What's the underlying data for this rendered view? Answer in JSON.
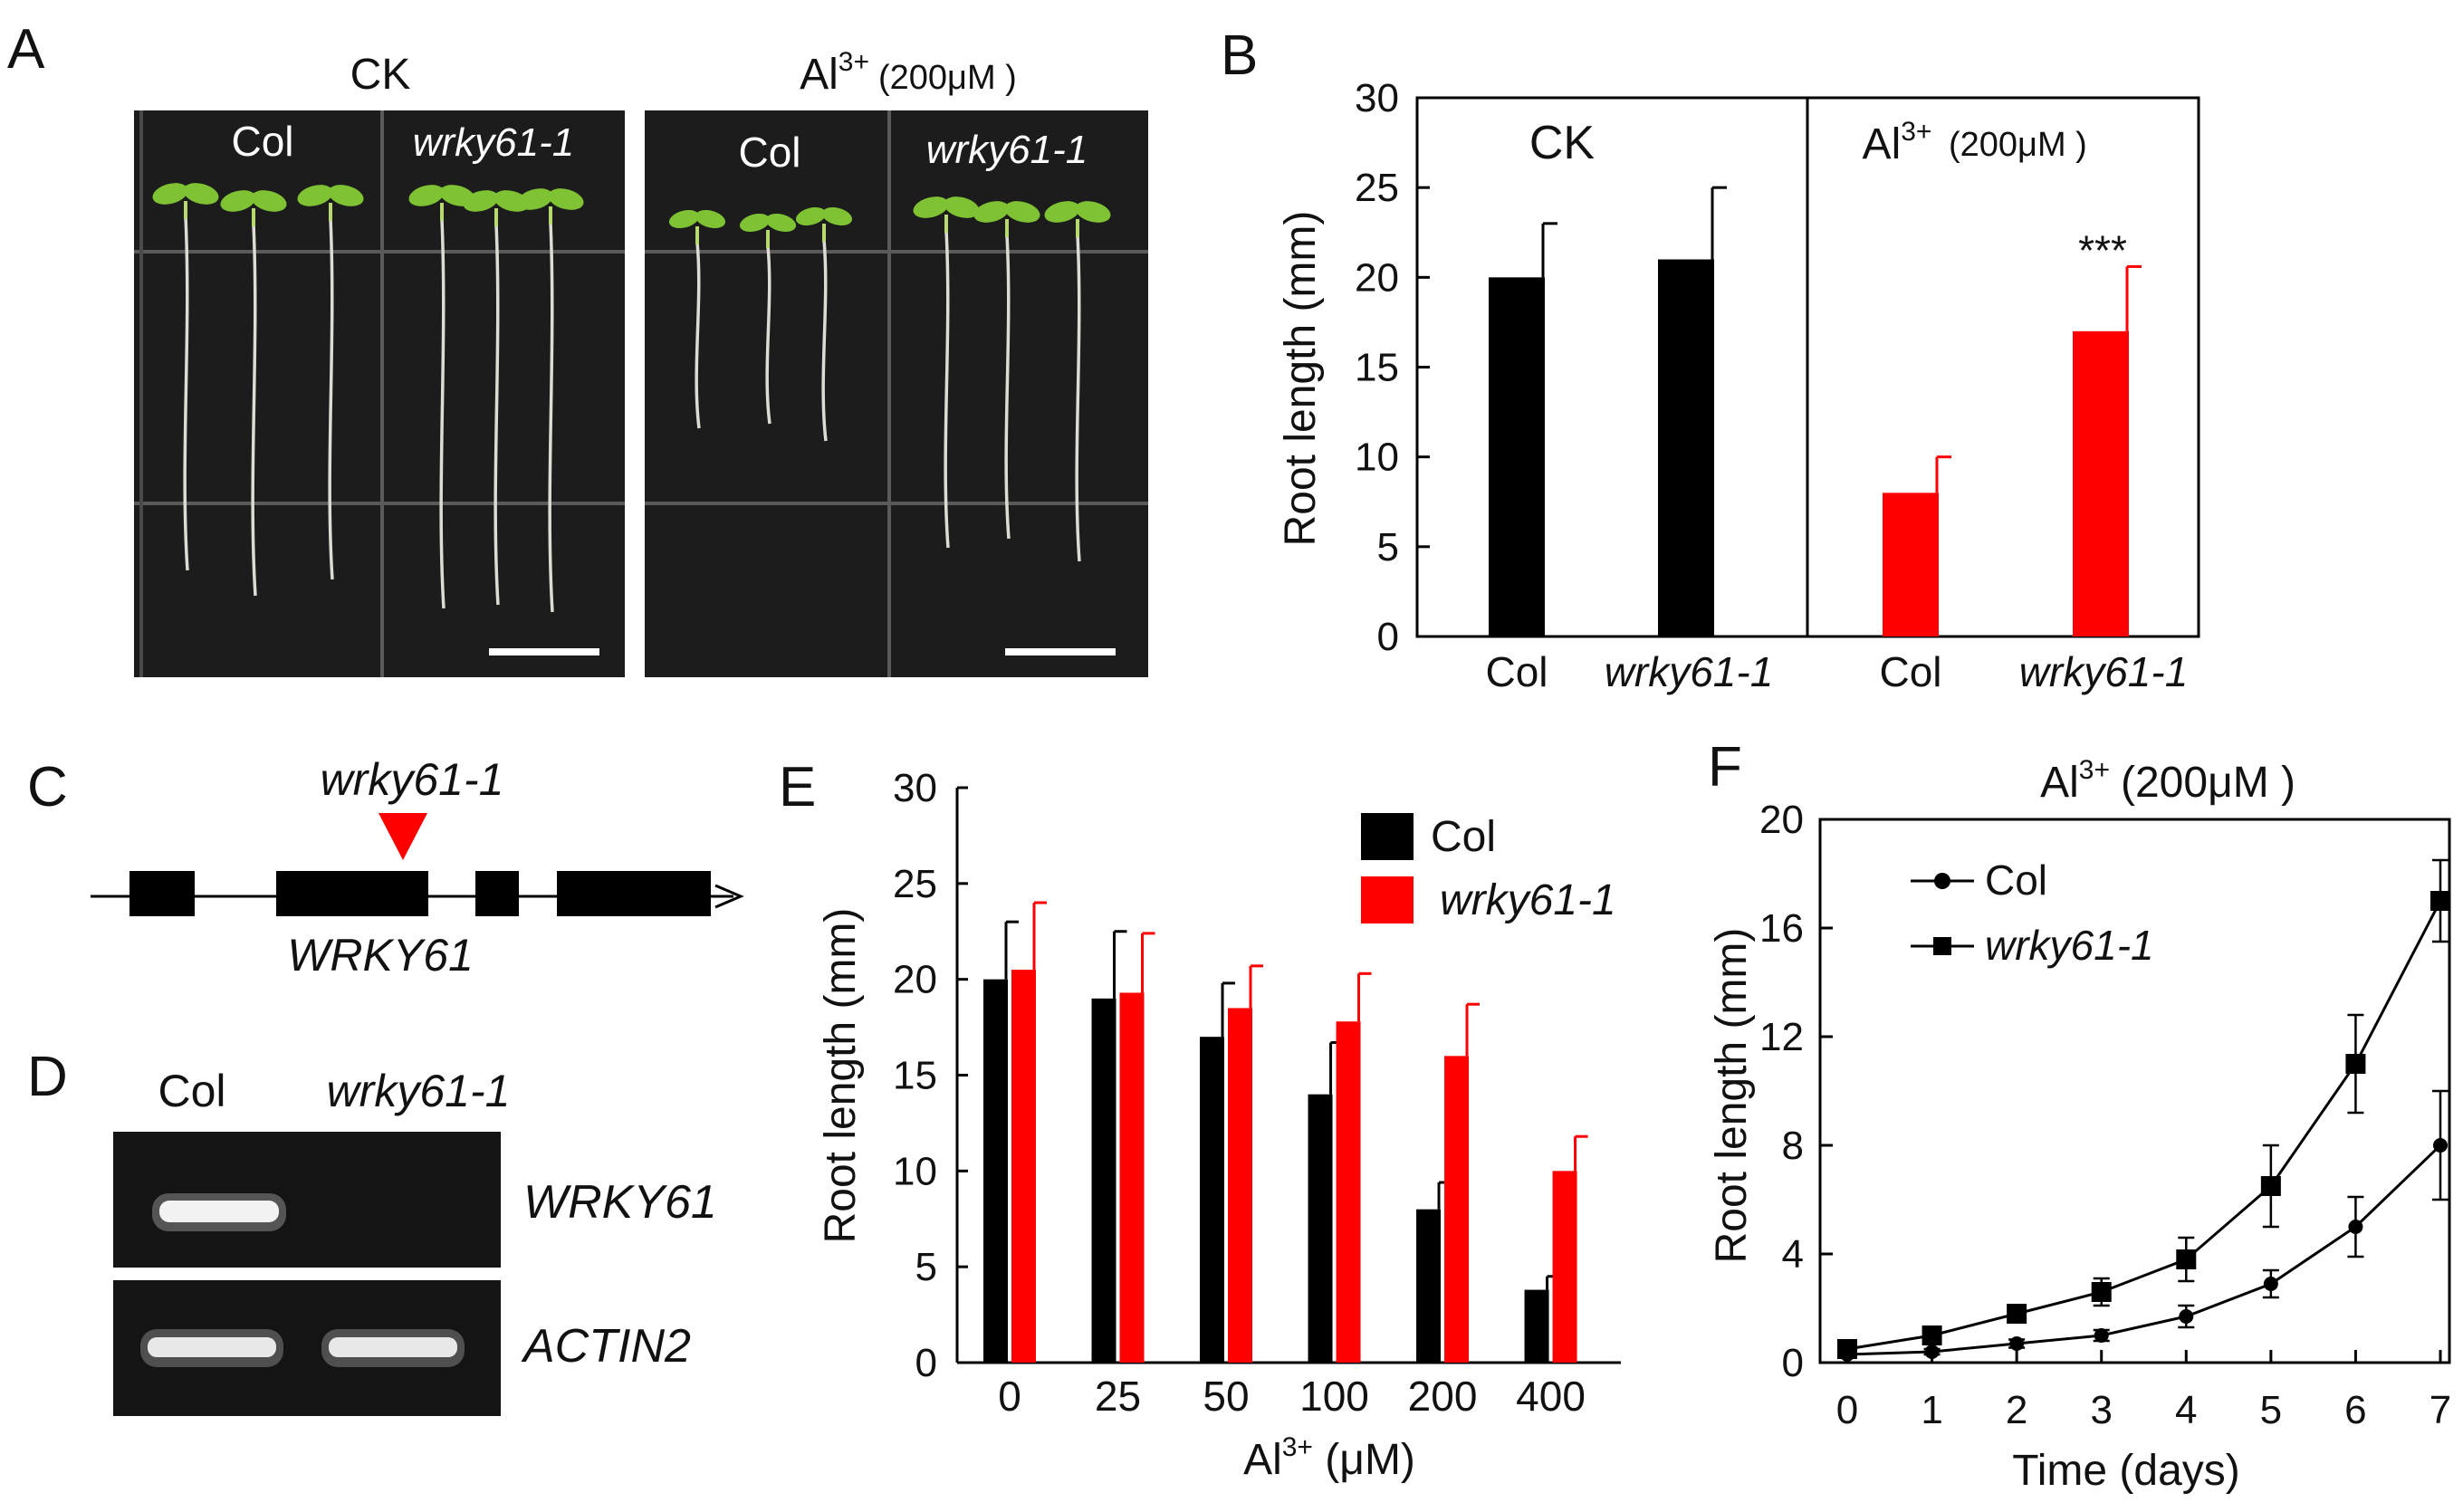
{
  "panel_letters": {
    "a": "A",
    "b": "B",
    "c": "C",
    "d": "D",
    "e": "E",
    "f": "F"
  },
  "labels": {
    "ck": "CK",
    "al": "Al",
    "al_sup": "3+",
    "al_conc": "(200μM )",
    "col": "Col",
    "mutant": "wrky61-1",
    "gene": "WRKY61",
    "actin": "ACTIN2",
    "sig": "***"
  },
  "colors": {
    "col": "#000000",
    "mutant": "#ff0000",
    "photo_bg": "#1c1c1c",
    "gel_bg": "#141414",
    "seedling": "#7fc233",
    "root": "#dcdcd4",
    "band": "#f2f2f2",
    "triangle": "#ff0000"
  },
  "chart_data": [
    {
      "id": "B",
      "type": "bar",
      "ylabel": "Root length (mm)",
      "ylim": [
        0,
        30
      ],
      "yticks": [
        0,
        5,
        10,
        15,
        20,
        25,
        30
      ],
      "groups": [
        "CK",
        "Al3+ (200μM )"
      ],
      "categories": [
        "Col",
        "wrky61-1",
        "Col",
        "wrky61-1"
      ],
      "values": [
        20,
        21,
        8,
        17
      ],
      "errors": [
        3,
        4,
        2,
        3.6
      ],
      "annotations": [
        "",
        "",
        "",
        "***"
      ]
    },
    {
      "id": "E",
      "type": "bar",
      "xlabel": "Al3+ (μM)",
      "ylabel": "Root length (mm)",
      "ylim": [
        0,
        30
      ],
      "yticks": [
        0,
        5,
        10,
        15,
        20,
        25,
        30
      ],
      "categories": [
        "0",
        "25",
        "50",
        "100",
        "200",
        "400"
      ],
      "series": [
        {
          "name": "Col",
          "values": [
            20,
            19,
            17,
            14,
            8,
            3.8
          ],
          "errors": [
            3,
            3.5,
            2.8,
            2.7,
            1.4,
            0.7
          ]
        },
        {
          "name": "wrky61-1",
          "values": [
            20.5,
            19.3,
            18.5,
            17.8,
            16,
            10
          ],
          "errors": [
            3.5,
            3.1,
            2.2,
            2.5,
            2.7,
            1.8
          ]
        }
      ],
      "legend": "top-right"
    },
    {
      "id": "F",
      "type": "line",
      "title": "Al3+ (200μM )",
      "xlabel": "Time (days)",
      "ylabel": "Root length (mm)",
      "x": [
        0,
        1,
        2,
        3,
        4,
        5,
        6,
        7
      ],
      "xlim": [
        0,
        7
      ],
      "ylim": [
        0,
        20
      ],
      "yticks": [
        0,
        4,
        8,
        12,
        16,
        20
      ],
      "series": [
        {
          "name": "Col",
          "marker": "circle",
          "values": [
            0.3,
            0.4,
            0.7,
            1.0,
            1.7,
            2.9,
            5.0,
            8.0
          ],
          "errors": [
            0.1,
            0.1,
            0.15,
            0.2,
            0.4,
            0.5,
            1.1,
            2.0
          ]
        },
        {
          "name": "wrky61-1",
          "marker": "square",
          "values": [
            0.5,
            1.0,
            1.8,
            2.6,
            3.8,
            6.5,
            11.0,
            17.0
          ],
          "errors": [
            0.2,
            0.3,
            0.3,
            0.5,
            0.8,
            1.5,
            1.8,
            1.5
          ]
        }
      ],
      "legend": "top-left"
    }
  ]
}
